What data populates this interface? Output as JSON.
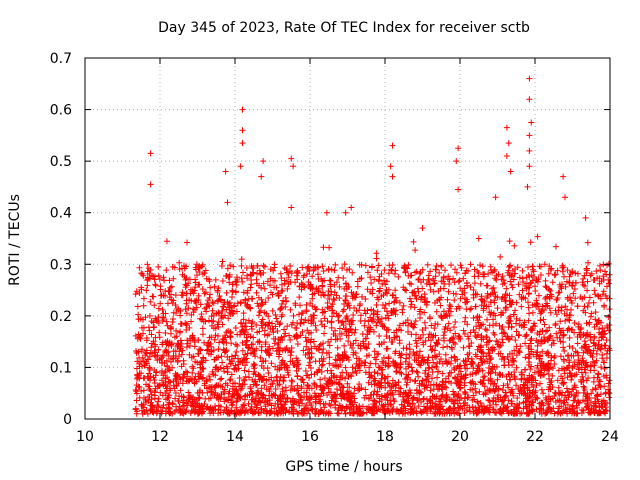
{
  "chart_data": {
    "type": "scatter",
    "title": "Day 345 of 2023, Rate Of TEC Index for receiver sctb",
    "xlabel": "GPS time / hours",
    "ylabel": "ROTI / TECUs",
    "xlim": [
      10,
      24
    ],
    "ylim": [
      0,
      0.7
    ],
    "xticks": [
      10,
      12,
      14,
      16,
      18,
      20,
      22,
      24
    ],
    "yticks": [
      0,
      0.1,
      0.2,
      0.3,
      0.4,
      0.5,
      0.6,
      0.7
    ],
    "xtick_labels": [
      "10",
      "12",
      "14",
      "16",
      "18",
      "20",
      "22",
      "24"
    ],
    "ytick_labels": [
      "0",
      "0.1",
      "0.2",
      "0.3",
      "0.4",
      "0.5",
      "0.6",
      "0.7"
    ],
    "grid": true,
    "legend": "none",
    "marker": "plus",
    "series": [
      {
        "color": "#ff0000",
        "x_range": [
          11.35,
          24
        ],
        "typical_range": [
          0.01,
          0.3
        ],
        "outliers": [
          {
            "x": 11.75,
            "y": 0.515
          },
          {
            "x": 11.75,
            "y": 0.455
          },
          {
            "x": 13.75,
            "y": 0.48
          },
          {
            "x": 13.8,
            "y": 0.42
          },
          {
            "x": 14.2,
            "y": 0.6
          },
          {
            "x": 14.2,
            "y": 0.56
          },
          {
            "x": 14.2,
            "y": 0.535
          },
          {
            "x": 14.15,
            "y": 0.49
          },
          {
            "x": 14.75,
            "y": 0.5
          },
          {
            "x": 14.7,
            "y": 0.47
          },
          {
            "x": 15.5,
            "y": 0.505
          },
          {
            "x": 15.55,
            "y": 0.49
          },
          {
            "x": 15.5,
            "y": 0.41
          },
          {
            "x": 18.2,
            "y": 0.53
          },
          {
            "x": 18.15,
            "y": 0.49
          },
          {
            "x": 18.2,
            "y": 0.47
          },
          {
            "x": 19.95,
            "y": 0.525
          },
          {
            "x": 19.9,
            "y": 0.5
          },
          {
            "x": 19.95,
            "y": 0.445
          },
          {
            "x": 21.25,
            "y": 0.565
          },
          {
            "x": 21.3,
            "y": 0.535
          },
          {
            "x": 21.25,
            "y": 0.51
          },
          {
            "x": 21.35,
            "y": 0.48
          },
          {
            "x": 21.85,
            "y": 0.66
          },
          {
            "x": 21.85,
            "y": 0.62
          },
          {
            "x": 21.9,
            "y": 0.575
          },
          {
            "x": 21.85,
            "y": 0.55
          },
          {
            "x": 21.85,
            "y": 0.52
          },
          {
            "x": 21.85,
            "y": 0.49
          },
          {
            "x": 21.8,
            "y": 0.45
          },
          {
            "x": 22.75,
            "y": 0.47
          },
          {
            "x": 22.8,
            "y": 0.43
          },
          {
            "x": 23.35,
            "y": 0.39
          },
          {
            "x": 20.95,
            "y": 0.43
          },
          {
            "x": 16.95,
            "y": 0.4
          },
          {
            "x": 17.1,
            "y": 0.41
          },
          {
            "x": 16.45,
            "y": 0.4
          },
          {
            "x": 19.0,
            "y": 0.37
          },
          {
            "x": 20.5,
            "y": 0.35
          }
        ]
      }
    ]
  }
}
